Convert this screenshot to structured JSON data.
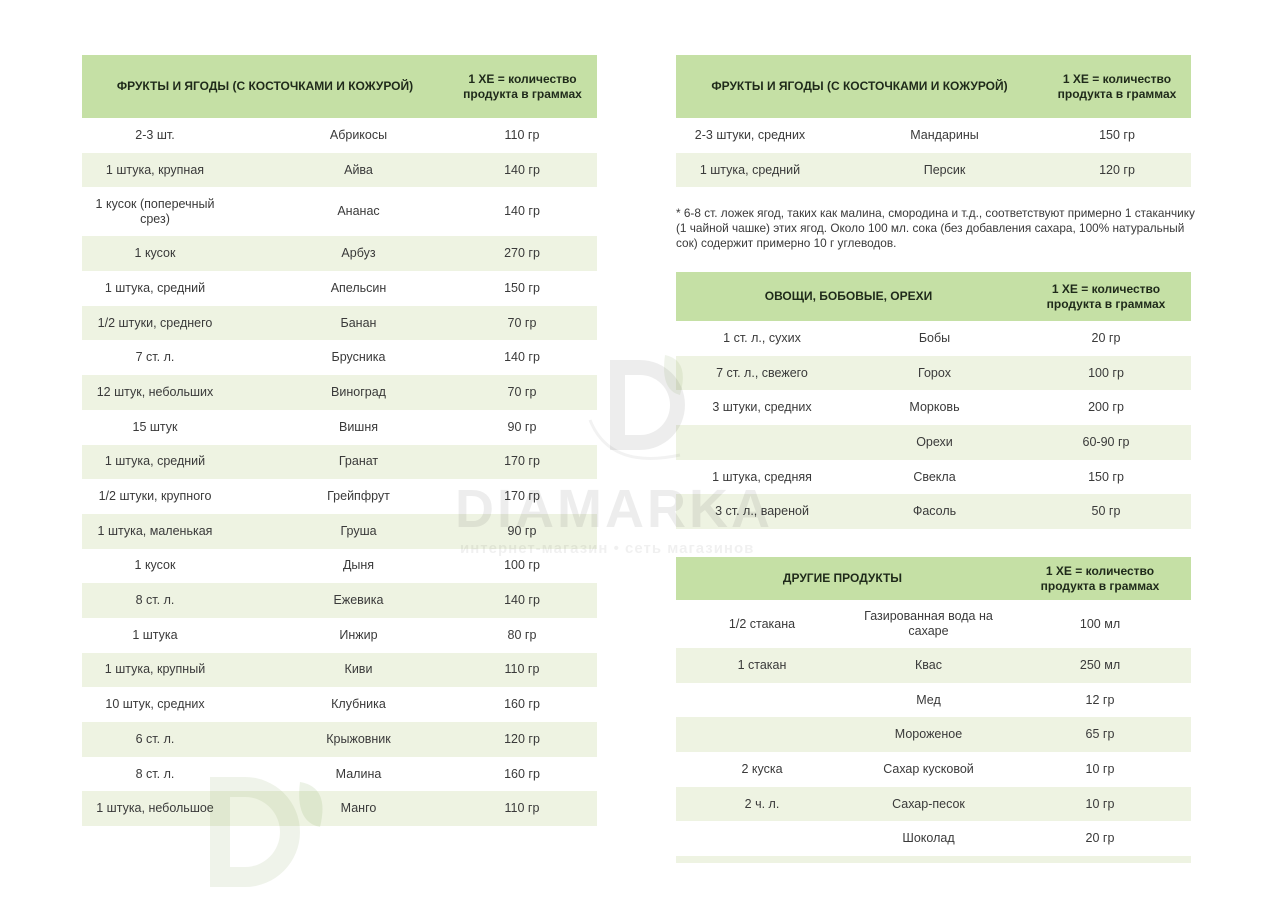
{
  "tables": [
    {
      "header": {
        "title": "ФРУКТЫ И ЯГОДЫ (С КОСТОЧКАМИ И КОЖУРОЙ)",
        "unit": "1 ХЕ = количество продукта в граммах"
      },
      "rows": [
        [
          "2-3 шт.",
          "Абрикосы",
          "110 гр"
        ],
        [
          "1 штука, крупная",
          "Айва",
          "140 гр"
        ],
        [
          "1 кусок (поперечный срез)",
          "Ананас",
          "140 гр"
        ],
        [
          "1 кусок",
          "Арбуз",
          "270 гр"
        ],
        [
          "1 штука, средний",
          "Апельсин",
          "150 гр"
        ],
        [
          "1/2 штуки, среднего",
          "Банан",
          "70 гр"
        ],
        [
          "7 ст. л.",
          "Брусника",
          "140 гр"
        ],
        [
          "12 штук, небольших",
          "Виноград",
          "70 гр"
        ],
        [
          "15 штук",
          "Вишня",
          "90 гр"
        ],
        [
          "1 штука, средний",
          "Гранат",
          "170 гр"
        ],
        [
          "1/2 штуки, крупного",
          "Грейпфрут",
          "170 гр"
        ],
        [
          "1 штука, маленькая",
          "Груша",
          "90 гр"
        ],
        [
          "1 кусок",
          "Дыня",
          "100 гр"
        ],
        [
          "8 ст. л.",
          "Ежевика",
          "140 гр"
        ],
        [
          "1 штука",
          "Инжир",
          "80 гр"
        ],
        [
          "1 штука, крупный",
          "Киви",
          "110 гр"
        ],
        [
          "10 штук, средних",
          "Клубника",
          "160 гр"
        ],
        [
          "6 ст. л.",
          "Крыжовник",
          "120 гр"
        ],
        [
          "8 ст. л.",
          "Малина",
          "160 гр"
        ],
        [
          "1 штука, небольшое",
          "Манго",
          "110 гр"
        ]
      ]
    },
    {
      "header": {
        "title": "ФРУКТЫ И ЯГОДЫ (С КОСТОЧКАМИ И КОЖУРОЙ)",
        "unit": "1 ХЕ = количество продукта в граммах"
      },
      "rows": [
        [
          "2-3 штуки, средних",
          "Мандарины",
          "150 гр"
        ],
        [
          "1 штука, средний",
          "Персик",
          "120 гр"
        ]
      ]
    },
    {
      "header": {
        "title": "ОВОЩИ, БОБОВЫЕ, ОРЕХИ",
        "unit": "1 ХЕ = количество продукта в граммах"
      },
      "rows": [
        [
          "1 ст. л., сухих",
          "Бобы",
          "20 гр"
        ],
        [
          "7 ст. л., свежего",
          "Горох",
          "100 гр"
        ],
        [
          "3 штуки, средних",
          "Морковь",
          "200 гр"
        ],
        [
          "",
          "Орехи",
          "60-90 гр"
        ],
        [
          "1 штука, средняя",
          "Свекла",
          "150 гр"
        ],
        [
          "3 ст. л., вареной",
          "Фасоль",
          "50 гр"
        ]
      ]
    },
    {
      "header": {
        "title": "ДРУГИЕ ПРОДУКТЫ",
        "unit": "1 ХЕ = количество продукта в граммах"
      },
      "rows": [
        [
          "1/2 стакана",
          "Газированная вода на сахаре",
          "100 мл"
        ],
        [
          "1 стакан",
          "Квас",
          "250 мл"
        ],
        [
          "",
          "Мед",
          "12 гр"
        ],
        [
          "",
          "Мороженое",
          "65 гр"
        ],
        [
          "2 куска",
          "Сахар кусковой",
          "10 гр"
        ],
        [
          "2 ч. л.",
          "Сахар-песок",
          "10 гр"
        ],
        [
          "",
          "Шоколад",
          "20 гр"
        ]
      ]
    }
  ],
  "footnote": "* 6-8 ст. ложек ягод, таких как малина, смородина и т.д., соответствуют примерно 1 стаканчику (1 чайной чашке) этих ягод. Около 100 мл. сока (без добавления сахара, 100% натуральный сок) содержит примерно 10 г углеводов.",
  "watermark": {
    "brand": "DIAMARKA",
    "tagline": "интернет-магазин • сеть магазинов",
    "logo": "D-leaf-logo"
  },
  "colors": {
    "header_bg": "#c5e0a5",
    "stripe_bg": "#eef3e2",
    "text": "#3a3a3a"
  }
}
